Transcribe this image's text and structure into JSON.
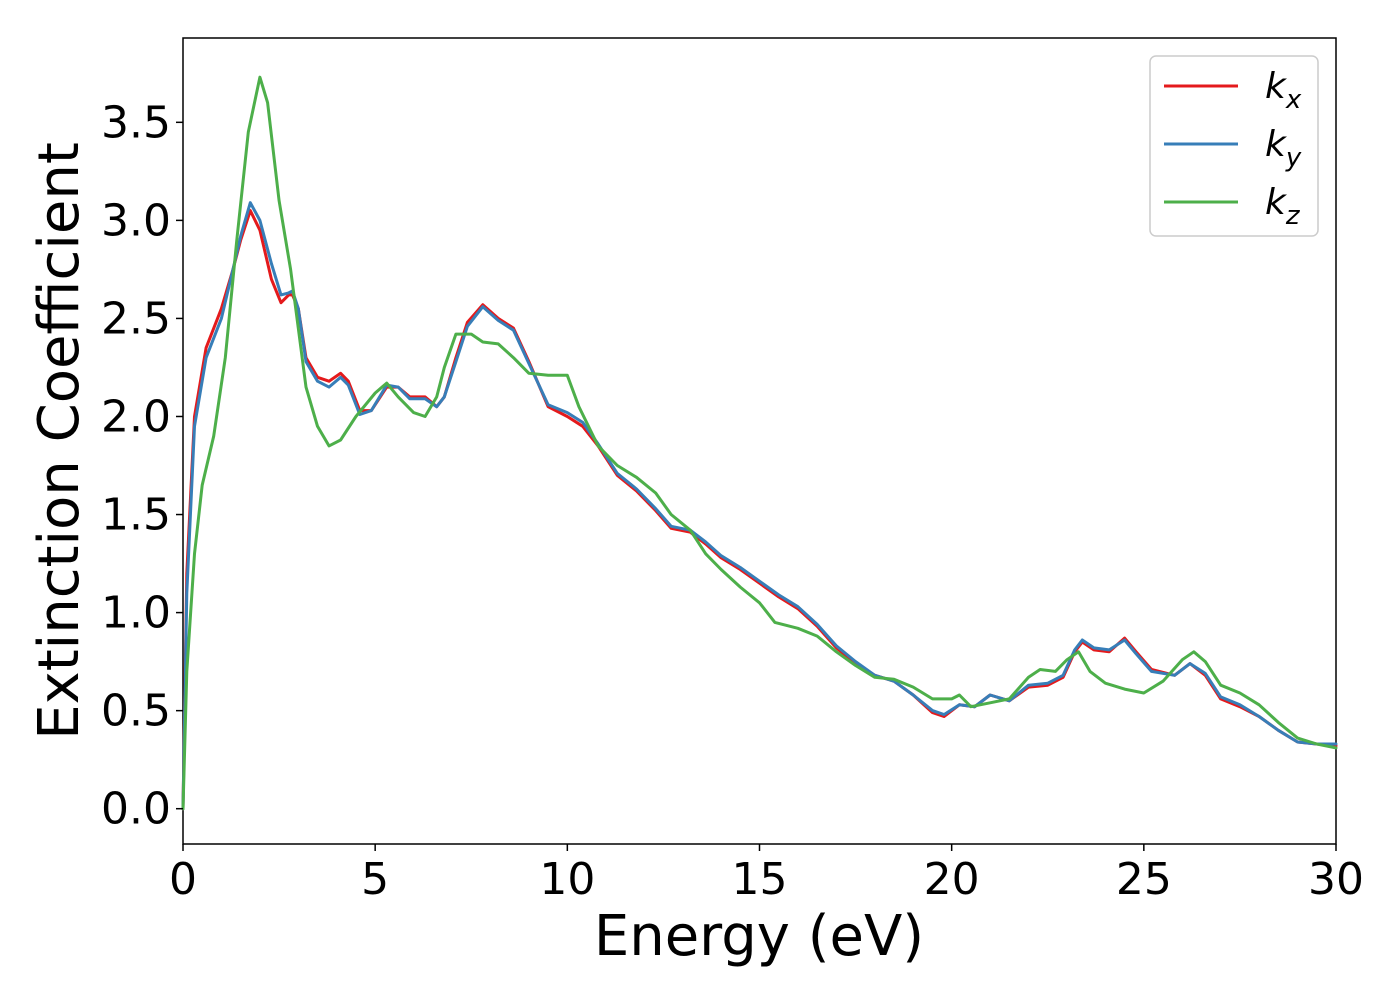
{
  "chart_data": {
    "type": "line",
    "xlabel": "Energy (eV)",
    "ylabel": "Extinction Coefficient",
    "xlim": [
      0,
      30
    ],
    "ylim": [
      -0.18,
      3.93
    ],
    "xticks": [
      "0",
      "5",
      "10",
      "15",
      "20",
      "25",
      "30"
    ],
    "yticks": [
      "0.0",
      "0.5",
      "1.0",
      "1.5",
      "2.0",
      "2.5",
      "3.0",
      "3.5"
    ],
    "grid": false,
    "legend_position": "top-right",
    "series": [
      {
        "name": "k",
        "subscript": "x",
        "color": "#e41a1c",
        "points": [
          [
            0,
            0
          ],
          [
            0.1,
            1.2
          ],
          [
            0.3,
            2.0
          ],
          [
            0.6,
            2.35
          ],
          [
            1.0,
            2.55
          ],
          [
            1.3,
            2.75
          ],
          [
            1.5,
            2.9
          ],
          [
            1.75,
            3.05
          ],
          [
            2.0,
            2.95
          ],
          [
            2.3,
            2.7
          ],
          [
            2.55,
            2.58
          ],
          [
            2.75,
            2.62
          ],
          [
            2.85,
            2.62
          ],
          [
            3.0,
            2.55
          ],
          [
            3.2,
            2.3
          ],
          [
            3.5,
            2.2
          ],
          [
            3.8,
            2.18
          ],
          [
            4.1,
            2.22
          ],
          [
            4.3,
            2.18
          ],
          [
            4.6,
            2.03
          ],
          [
            4.9,
            2.03
          ],
          [
            5.3,
            2.15
          ],
          [
            5.6,
            2.15
          ],
          [
            5.9,
            2.1
          ],
          [
            6.3,
            2.1
          ],
          [
            6.6,
            2.05
          ],
          [
            6.8,
            2.1
          ],
          [
            7.1,
            2.3
          ],
          [
            7.4,
            2.48
          ],
          [
            7.8,
            2.57
          ],
          [
            8.2,
            2.5
          ],
          [
            8.6,
            2.45
          ],
          [
            9.0,
            2.28
          ],
          [
            9.5,
            2.05
          ],
          [
            10.0,
            2.0
          ],
          [
            10.4,
            1.95
          ],
          [
            10.8,
            1.85
          ],
          [
            11.3,
            1.7
          ],
          [
            11.8,
            1.62
          ],
          [
            12.3,
            1.52
          ],
          [
            12.7,
            1.43
          ],
          [
            13.2,
            1.41
          ],
          [
            13.6,
            1.35
          ],
          [
            14.0,
            1.28
          ],
          [
            14.5,
            1.22
          ],
          [
            15.0,
            1.15
          ],
          [
            15.5,
            1.08
          ],
          [
            16.0,
            1.02
          ],
          [
            16.5,
            0.93
          ],
          [
            17.0,
            0.82
          ],
          [
            17.5,
            0.74
          ],
          [
            18.0,
            0.68
          ],
          [
            18.5,
            0.65
          ],
          [
            19.0,
            0.58
          ],
          [
            19.5,
            0.49
          ],
          [
            19.8,
            0.47
          ],
          [
            20.2,
            0.53
          ],
          [
            20.6,
            0.52
          ],
          [
            21.0,
            0.58
          ],
          [
            21.5,
            0.55
          ],
          [
            22.0,
            0.62
          ],
          [
            22.5,
            0.63
          ],
          [
            22.9,
            0.67
          ],
          [
            23.2,
            0.8
          ],
          [
            23.4,
            0.85
          ],
          [
            23.7,
            0.81
          ],
          [
            24.1,
            0.8
          ],
          [
            24.5,
            0.87
          ],
          [
            24.8,
            0.8
          ],
          [
            25.2,
            0.71
          ],
          [
            25.8,
            0.68
          ],
          [
            26.2,
            0.74
          ],
          [
            26.6,
            0.68
          ],
          [
            27.0,
            0.56
          ],
          [
            27.5,
            0.52
          ],
          [
            28.0,
            0.47
          ],
          [
            28.5,
            0.4
          ],
          [
            29.0,
            0.34
          ],
          [
            29.5,
            0.33
          ],
          [
            30.0,
            0.32
          ]
        ]
      },
      {
        "name": "k",
        "subscript": "y",
        "color": "#377eb8",
        "points": [
          [
            0,
            0
          ],
          [
            0.1,
            1.1
          ],
          [
            0.3,
            1.95
          ],
          [
            0.6,
            2.3
          ],
          [
            1.0,
            2.5
          ],
          [
            1.3,
            2.75
          ],
          [
            1.5,
            2.92
          ],
          [
            1.75,
            3.09
          ],
          [
            2.0,
            3.0
          ],
          [
            2.3,
            2.78
          ],
          [
            2.55,
            2.62
          ],
          [
            2.75,
            2.63
          ],
          [
            2.85,
            2.64
          ],
          [
            3.0,
            2.55
          ],
          [
            3.2,
            2.28
          ],
          [
            3.5,
            2.18
          ],
          [
            3.8,
            2.15
          ],
          [
            4.1,
            2.2
          ],
          [
            4.3,
            2.16
          ],
          [
            4.6,
            2.01
          ],
          [
            4.9,
            2.03
          ],
          [
            5.3,
            2.16
          ],
          [
            5.6,
            2.15
          ],
          [
            5.9,
            2.09
          ],
          [
            6.3,
            2.09
          ],
          [
            6.6,
            2.05
          ],
          [
            6.8,
            2.1
          ],
          [
            7.1,
            2.28
          ],
          [
            7.4,
            2.46
          ],
          [
            7.8,
            2.56
          ],
          [
            8.2,
            2.49
          ],
          [
            8.6,
            2.44
          ],
          [
            9.0,
            2.27
          ],
          [
            9.5,
            2.06
          ],
          [
            10.0,
            2.02
          ],
          [
            10.4,
            1.97
          ],
          [
            10.8,
            1.86
          ],
          [
            11.3,
            1.71
          ],
          [
            11.8,
            1.63
          ],
          [
            12.3,
            1.53
          ],
          [
            12.7,
            1.44
          ],
          [
            13.2,
            1.42
          ],
          [
            13.6,
            1.36
          ],
          [
            14.0,
            1.29
          ],
          [
            14.5,
            1.23
          ],
          [
            15.0,
            1.16
          ],
          [
            15.5,
            1.09
          ],
          [
            16.0,
            1.03
          ],
          [
            16.5,
            0.94
          ],
          [
            17.0,
            0.83
          ],
          [
            17.5,
            0.75
          ],
          [
            18.0,
            0.68
          ],
          [
            18.5,
            0.65
          ],
          [
            19.0,
            0.58
          ],
          [
            19.5,
            0.5
          ],
          [
            19.8,
            0.48
          ],
          [
            20.2,
            0.53
          ],
          [
            20.6,
            0.52
          ],
          [
            21.0,
            0.58
          ],
          [
            21.5,
            0.55
          ],
          [
            22.0,
            0.63
          ],
          [
            22.5,
            0.64
          ],
          [
            22.9,
            0.68
          ],
          [
            23.2,
            0.81
          ],
          [
            23.4,
            0.86
          ],
          [
            23.7,
            0.82
          ],
          [
            24.1,
            0.81
          ],
          [
            24.5,
            0.86
          ],
          [
            24.8,
            0.79
          ],
          [
            25.2,
            0.7
          ],
          [
            25.8,
            0.68
          ],
          [
            26.2,
            0.74
          ],
          [
            26.6,
            0.69
          ],
          [
            27.0,
            0.57
          ],
          [
            27.5,
            0.53
          ],
          [
            28.0,
            0.47
          ],
          [
            28.5,
            0.4
          ],
          [
            29.0,
            0.34
          ],
          [
            29.5,
            0.33
          ],
          [
            30.0,
            0.33
          ]
        ]
      },
      {
        "name": "k",
        "subscript": "z",
        "color": "#4daf4a",
        "points": [
          [
            0,
            0
          ],
          [
            0.1,
            0.7
          ],
          [
            0.3,
            1.3
          ],
          [
            0.5,
            1.65
          ],
          [
            0.8,
            1.9
          ],
          [
            1.1,
            2.3
          ],
          [
            1.4,
            2.9
          ],
          [
            1.7,
            3.45
          ],
          [
            2.0,
            3.73
          ],
          [
            2.2,
            3.6
          ],
          [
            2.5,
            3.1
          ],
          [
            2.8,
            2.75
          ],
          [
            3.0,
            2.45
          ],
          [
            3.2,
            2.15
          ],
          [
            3.5,
            1.95
          ],
          [
            3.8,
            1.85
          ],
          [
            4.1,
            1.88
          ],
          [
            4.5,
            2.0
          ],
          [
            5.0,
            2.12
          ],
          [
            5.3,
            2.17
          ],
          [
            5.6,
            2.1
          ],
          [
            6.0,
            2.02
          ],
          [
            6.3,
            2.0
          ],
          [
            6.6,
            2.1
          ],
          [
            6.8,
            2.25
          ],
          [
            7.1,
            2.42
          ],
          [
            7.5,
            2.42
          ],
          [
            7.8,
            2.38
          ],
          [
            8.2,
            2.37
          ],
          [
            8.6,
            2.3
          ],
          [
            9.0,
            2.22
          ],
          [
            9.5,
            2.21
          ],
          [
            10.0,
            2.21
          ],
          [
            10.3,
            2.05
          ],
          [
            10.8,
            1.85
          ],
          [
            11.3,
            1.75
          ],
          [
            11.8,
            1.69
          ],
          [
            12.3,
            1.61
          ],
          [
            12.7,
            1.5
          ],
          [
            13.2,
            1.42
          ],
          [
            13.6,
            1.3
          ],
          [
            14.0,
            1.22
          ],
          [
            14.5,
            1.13
          ],
          [
            15.0,
            1.05
          ],
          [
            15.4,
            0.95
          ],
          [
            16.0,
            0.92
          ],
          [
            16.5,
            0.88
          ],
          [
            17.0,
            0.8
          ],
          [
            17.5,
            0.73
          ],
          [
            18.0,
            0.67
          ],
          [
            18.5,
            0.66
          ],
          [
            19.0,
            0.62
          ],
          [
            19.5,
            0.56
          ],
          [
            20.0,
            0.56
          ],
          [
            20.2,
            0.58
          ],
          [
            20.5,
            0.52
          ],
          [
            21.0,
            0.54
          ],
          [
            21.5,
            0.56
          ],
          [
            22.0,
            0.67
          ],
          [
            22.3,
            0.71
          ],
          [
            22.7,
            0.7
          ],
          [
            23.0,
            0.76
          ],
          [
            23.3,
            0.8
          ],
          [
            23.6,
            0.7
          ],
          [
            24.0,
            0.64
          ],
          [
            24.5,
            0.61
          ],
          [
            25.0,
            0.59
          ],
          [
            25.5,
            0.65
          ],
          [
            26.0,
            0.76
          ],
          [
            26.3,
            0.8
          ],
          [
            26.6,
            0.75
          ],
          [
            27.0,
            0.63
          ],
          [
            27.5,
            0.59
          ],
          [
            28.0,
            0.53
          ],
          [
            28.5,
            0.44
          ],
          [
            29.0,
            0.36
          ],
          [
            29.5,
            0.33
          ],
          [
            30.0,
            0.31
          ]
        ]
      }
    ]
  }
}
